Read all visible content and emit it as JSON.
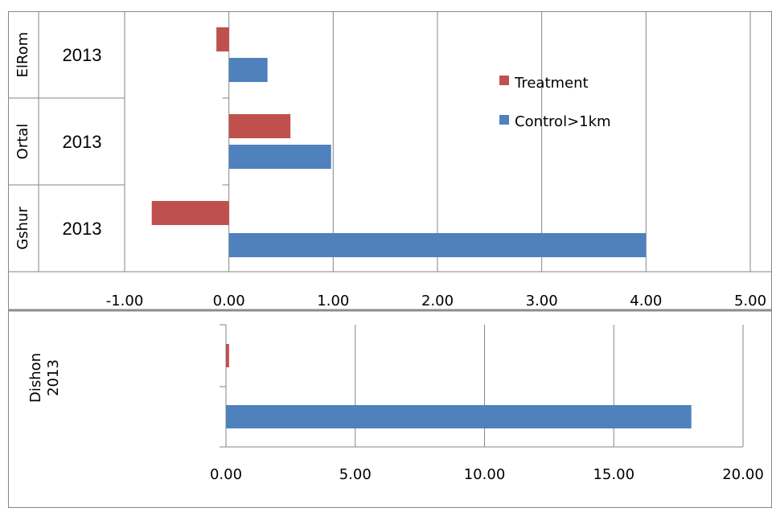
{
  "colors": {
    "treatment": "#c0504d",
    "control": "#4f81bd",
    "grid": "#868686",
    "frame": "#868686",
    "separator": "#8c8c8c"
  },
  "legend": {
    "treatment": "Treatment",
    "control": "Control>1km"
  },
  "chart_data": [
    {
      "type": "bar",
      "orientation": "horizontal",
      "categories": [
        {
          "site": "ElRom",
          "year": "2013"
        },
        {
          "site": "Ortal",
          "year": "2013"
        },
        {
          "site": "Gshur",
          "year": "2013"
        }
      ],
      "series": [
        {
          "name": "Treatment",
          "values": [
            -0.12,
            0.59,
            -0.74
          ]
        },
        {
          "name": "Control>1km",
          "values": [
            0.37,
            0.98,
            4.0
          ]
        }
      ],
      "xlim": [
        -1.0,
        5.0
      ],
      "xticks": [
        "-1.00",
        "0.00",
        "1.00",
        "2.00",
        "3.00",
        "4.00",
        "5.00"
      ],
      "grid": true,
      "legend_position": "top-right"
    },
    {
      "type": "bar",
      "orientation": "horizontal",
      "categories": [
        {
          "site": "Dishon",
          "year": "2013"
        }
      ],
      "series": [
        {
          "name": "Treatment",
          "values": [
            0.12
          ]
        },
        {
          "name": "Control>1km",
          "values": [
            18.0
          ]
        }
      ],
      "xlim": [
        0.0,
        20.0
      ],
      "xticks": [
        "0.00",
        "5.00",
        "10.00",
        "15.00",
        "20.00"
      ],
      "grid": true
    }
  ]
}
